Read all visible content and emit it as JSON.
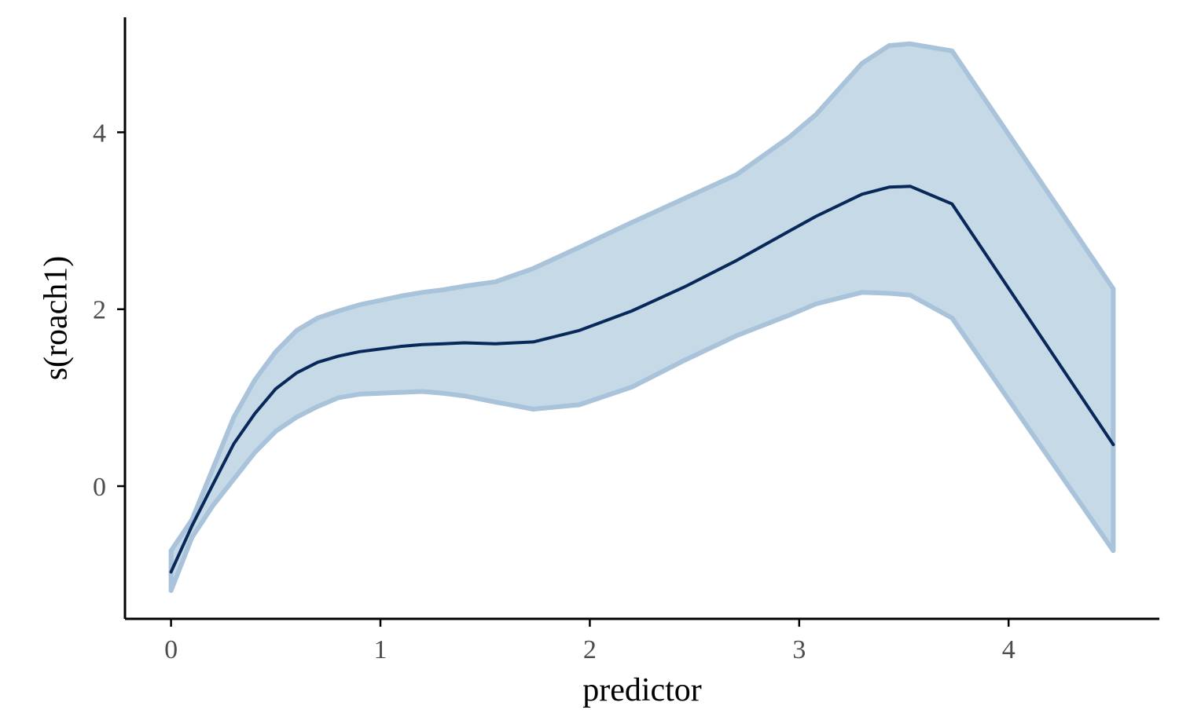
{
  "chart_data": {
    "type": "line",
    "title": "",
    "xlabel": "predictor",
    "ylabel": "s(roach1)",
    "xlim": [
      -0.22,
      4.72
    ],
    "ylim": [
      -1.5,
      5.3
    ],
    "x_ticks": [
      0,
      1,
      2,
      3,
      4
    ],
    "y_ticks": [
      0,
      2,
      4
    ],
    "x_tick_labels": [
      "0",
      "1",
      "2",
      "3",
      "4"
    ],
    "y_tick_labels": [
      "0",
      "2",
      "4"
    ],
    "grid": false,
    "legend": "none",
    "colors": {
      "line": "#08285a",
      "ribbon_fill": "#c6d9e7",
      "ribbon_edge": "#a8c3da",
      "axis": "#000000",
      "tick_label": "#4d4d4d"
    },
    "series": [
      {
        "x": [
          0,
          0.1,
          0.2,
          0.3,
          0.4,
          0.5,
          0.6,
          0.7,
          0.8,
          0.9,
          1.0,
          1.1,
          1.2,
          1.3,
          1.4,
          1.55,
          1.73,
          1.95,
          2.2,
          2.45,
          2.7,
          2.95,
          3.08,
          3.3,
          3.43,
          3.53,
          3.73,
          4.5
        ],
        "y": [
          -0.97,
          -0.45,
          0.02,
          0.48,
          0.82,
          1.1,
          1.28,
          1.4,
          1.47,
          1.52,
          1.55,
          1.58,
          1.6,
          1.61,
          1.62,
          1.61,
          1.63,
          1.76,
          1.98,
          2.25,
          2.55,
          2.88,
          3.05,
          3.3,
          3.38,
          3.39,
          3.19,
          0.47
        ],
        "lower": [
          -1.18,
          -0.58,
          -0.22,
          0.08,
          0.38,
          0.62,
          0.78,
          0.9,
          1.0,
          1.04,
          1.05,
          1.06,
          1.07,
          1.05,
          1.02,
          0.95,
          0.87,
          0.92,
          1.12,
          1.42,
          1.7,
          1.93,
          2.06,
          2.19,
          2.18,
          2.16,
          1.9,
          -0.73
        ],
        "upper": [
          -0.73,
          -0.38,
          0.2,
          0.78,
          1.2,
          1.52,
          1.76,
          1.9,
          1.98,
          2.05,
          2.1,
          2.15,
          2.19,
          2.22,
          2.26,
          2.31,
          2.46,
          2.7,
          2.98,
          3.25,
          3.52,
          3.94,
          4.2,
          4.78,
          4.98,
          5.0,
          4.92,
          2.23
        ]
      }
    ]
  }
}
